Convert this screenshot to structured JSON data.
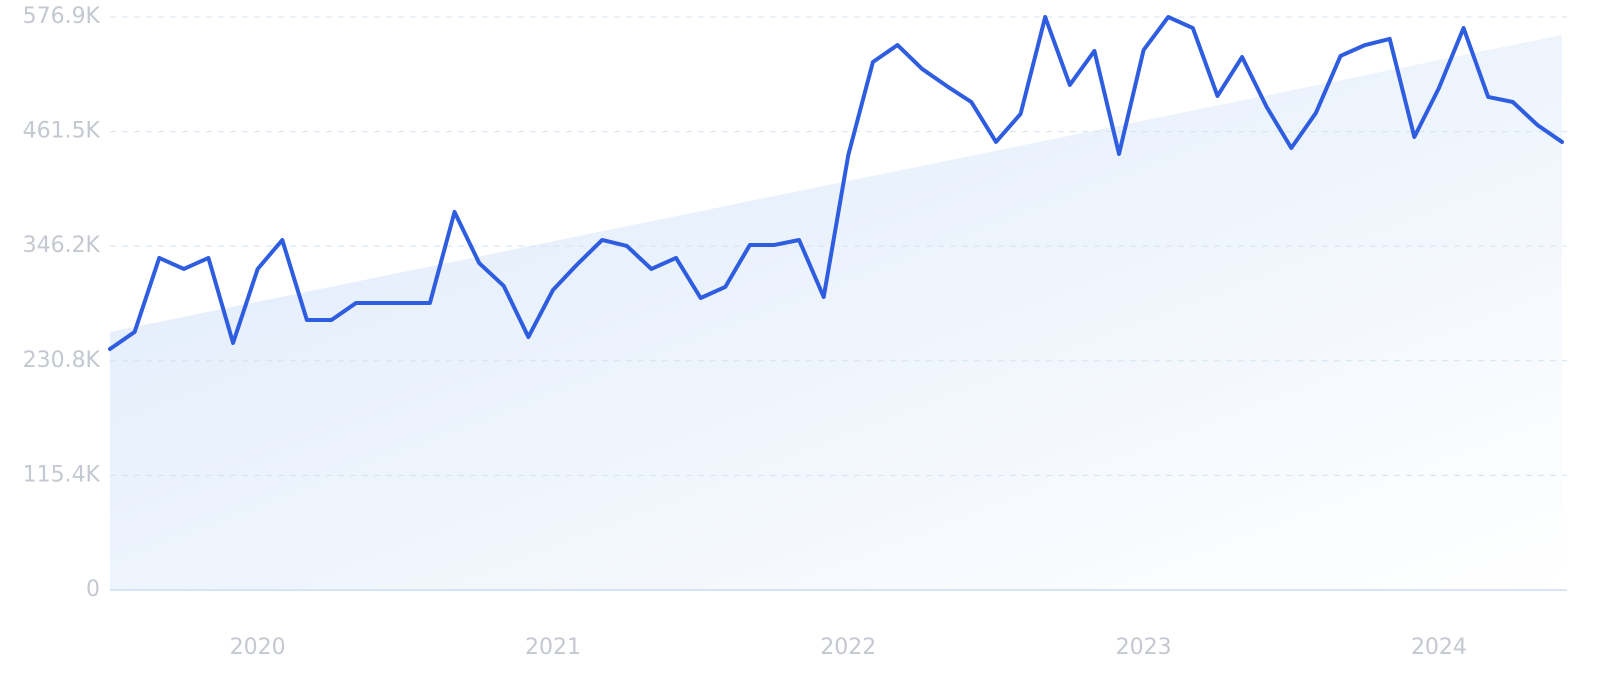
{
  "chart_data": {
    "type": "line",
    "color": "#2f5de0",
    "grid": true,
    "categories": [
      null,
      null,
      null,
      null,
      null,
      null,
      "2020",
      null,
      null,
      null,
      null,
      null,
      null,
      null,
      null,
      null,
      null,
      null,
      "2021",
      null,
      null,
      null,
      null,
      null,
      null,
      null,
      null,
      null,
      null,
      null,
      "2022",
      null,
      null,
      null,
      null,
      null,
      null,
      null,
      null,
      null,
      null,
      null,
      "2023",
      null,
      null,
      null,
      null,
      null,
      null,
      null,
      null,
      null,
      null,
      null,
      "2024",
      null,
      null,
      null,
      null,
      null
    ],
    "values": [
      242600,
      259800,
      334300,
      323200,
      334300,
      248700,
      323200,
      352400,
      271800,
      271800,
      289000,
      289000,
      289000,
      289000,
      380600,
      329200,
      306100,
      254700,
      302100,
      328200,
      352400,
      346400,
      323200,
      334300,
      294000,
      305100,
      347400,
      347400,
      352400,
      295000,
      438000,
      531600,
      548700,
      524600,
      507400,
      491300,
      451100,
      479300,
      576900,
      508500,
      542700,
      439000,
      543700,
      576900,
      565800,
      497400,
      536600,
      486300,
      445000,
      480300,
      537700,
      548700,
      554800,
      456100,
      505400,
      565800,
      496400,
      491300,
      468200,
      451100
    ],
    "trend": [
      259800,
      558800
    ],
    "ylim": [
      0,
      576900
    ],
    "yticks": [
      0,
      {
        "value": 115400,
        "label": "115.4K"
      },
      {
        "value": 230800,
        "label": "230.8K"
      },
      {
        "value": 346200,
        "label": "346.2K"
      },
      {
        "value": 461500,
        "label": "461.5K"
      },
      {
        "value": 576900,
        "label": "576.9K"
      }
    ]
  }
}
